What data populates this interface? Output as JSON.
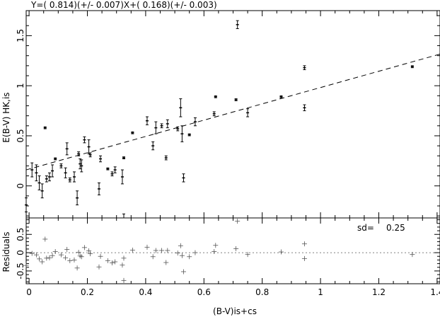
{
  "chart_data": {
    "type": "scatter",
    "title": "Y=( 0.814)(+/- 0.007)X+( 0.168)(+/- 0.003)",
    "xlabel": "(B-V)is+cs",
    "ylabel": "E(B-V) HK,is",
    "xlim": [
      -0.01,
      1.41
    ],
    "ylim": [
      -0.32,
      1.75
    ],
    "x_ticks": [
      "0",
      "0.2",
      "0.4",
      "0.6",
      "0.8",
      "1",
      "1.2",
      "1.4"
    ],
    "y_ticks": [
      "0",
      "0.5",
      "1",
      "1.5"
    ],
    "fit_line": {
      "slope": 0.814,
      "intercept": 0.168,
      "style": "dashed"
    },
    "points": [
      {
        "x": -0.01,
        "y": -0.19,
        "err": 0.07
      },
      {
        "x": 0.01,
        "y": 0.16,
        "err": 0.07
      },
      {
        "x": 0.025,
        "y": 0.13,
        "err": 0.08
      },
      {
        "x": 0.035,
        "y": 0.03,
        "err": 0.07
      },
      {
        "x": 0.045,
        "y": -0.05,
        "err": 0.07
      },
      {
        "x": 0.055,
        "y": 0.58,
        "err": 0.01
      },
      {
        "x": 0.06,
        "y": 0.07,
        "err": 0.03
      },
      {
        "x": 0.07,
        "y": 0.09,
        "err": 0.04
      },
      {
        "x": 0.08,
        "y": 0.15,
        "err": 0.06
      },
      {
        "x": 0.09,
        "y": 0.27,
        "err": 0.01
      },
      {
        "x": 0.11,
        "y": 0.2,
        "err": 0.02
      },
      {
        "x": 0.125,
        "y": 0.13,
        "err": 0.05
      },
      {
        "x": 0.13,
        "y": 0.37,
        "err": 0.06
      },
      {
        "x": 0.14,
        "y": 0.06,
        "err": 0.02
      },
      {
        "x": 0.155,
        "y": 0.09,
        "err": 0.05
      },
      {
        "x": 0.165,
        "y": -0.12,
        "err": 0.07
      },
      {
        "x": 0.17,
        "y": 0.32,
        "err": 0.02
      },
      {
        "x": 0.175,
        "y": 0.22,
        "err": 0.05
      },
      {
        "x": 0.18,
        "y": 0.2,
        "err": 0.06
      },
      {
        "x": 0.19,
        "y": 0.46,
        "err": 0.03
      },
      {
        "x": 0.205,
        "y": 0.39,
        "err": 0.07
      },
      {
        "x": 0.21,
        "y": 0.31,
        "err": 0.02
      },
      {
        "x": 0.24,
        "y": -0.03,
        "err": 0.06
      },
      {
        "x": 0.245,
        "y": 0.27,
        "err": 0.03
      },
      {
        "x": 0.27,
        "y": 0.17,
        "err": 0.01
      },
      {
        "x": 0.285,
        "y": 0.12,
        "err": 0.02
      },
      {
        "x": 0.295,
        "y": 0.16,
        "err": 0.03
      },
      {
        "x": 0.32,
        "y": 0.09,
        "err": 0.07
      },
      {
        "x": 0.325,
        "y": 0.28,
        "err": 0.01
      },
      {
        "x": 0.325,
        "y": -0.33,
        "err": 0.05
      },
      {
        "x": 0.355,
        "y": 0.53,
        "err": 0.01
      },
      {
        "x": 0.405,
        "y": 0.65,
        "err": 0.04
      },
      {
        "x": 0.425,
        "y": 0.4,
        "err": 0.04
      },
      {
        "x": 0.435,
        "y": 0.58,
        "err": 0.06
      },
      {
        "x": 0.455,
        "y": 0.6,
        "err": 0.02
      },
      {
        "x": 0.47,
        "y": 0.28,
        "err": 0.02
      },
      {
        "x": 0.475,
        "y": 0.62,
        "err": 0.04
      },
      {
        "x": 0.51,
        "y": 0.57,
        "err": 0.02
      },
      {
        "x": 0.52,
        "y": 0.78,
        "err": 0.09
      },
      {
        "x": 0.525,
        "y": 0.52,
        "err": 0.08
      },
      {
        "x": 0.53,
        "y": 0.08,
        "err": 0.04
      },
      {
        "x": 0.55,
        "y": 0.51,
        "err": 0.01
      },
      {
        "x": 0.57,
        "y": 0.64,
        "err": 0.04
      },
      {
        "x": 0.635,
        "y": 0.72,
        "err": 0.02
      },
      {
        "x": 0.64,
        "y": 0.89,
        "err": 0.01
      },
      {
        "x": 0.71,
        "y": 0.86,
        "err": 0.01
      },
      {
        "x": 0.715,
        "y": 1.61,
        "err": 0.04
      },
      {
        "x": 0.75,
        "y": 0.73,
        "err": 0.04
      },
      {
        "x": 0.865,
        "y": 0.89,
        "err": 0.01
      },
      {
        "x": 0.945,
        "y": 1.18,
        "err": 0.02
      },
      {
        "x": 0.945,
        "y": 0.78,
        "err": 0.03
      },
      {
        "x": 1.315,
        "y": 1.19,
        "err": 0.01
      }
    ],
    "residuals_panel": {
      "ylabel": "Residuals",
      "ylim": [
        -0.85,
        0.95
      ],
      "y_ticks": [
        "0.5",
        "0",
        "-0.5"
      ],
      "sd_label": "sd=",
      "sd_value": "0.25",
      "points": [
        {
          "x": -0.01,
          "y": -0.35
        },
        {
          "x": 0.01,
          "y": -0.02
        },
        {
          "x": 0.025,
          "y": -0.06
        },
        {
          "x": 0.035,
          "y": -0.17
        },
        {
          "x": 0.045,
          "y": -0.25
        },
        {
          "x": 0.055,
          "y": 0.37
        },
        {
          "x": 0.06,
          "y": -0.15
        },
        {
          "x": 0.07,
          "y": -0.14
        },
        {
          "x": 0.08,
          "y": -0.08
        },
        {
          "x": 0.09,
          "y": 0.03
        },
        {
          "x": 0.11,
          "y": -0.06
        },
        {
          "x": 0.125,
          "y": -0.14
        },
        {
          "x": 0.13,
          "y": 0.09
        },
        {
          "x": 0.14,
          "y": -0.22
        },
        {
          "x": 0.155,
          "y": -0.2
        },
        {
          "x": 0.165,
          "y": -0.42
        },
        {
          "x": 0.17,
          "y": 0.01
        },
        {
          "x": 0.175,
          "y": -0.09
        },
        {
          "x": 0.18,
          "y": -0.11
        },
        {
          "x": 0.19,
          "y": 0.14
        },
        {
          "x": 0.205,
          "y": 0.05
        },
        {
          "x": 0.21,
          "y": -0.03
        },
        {
          "x": 0.24,
          "y": -0.39
        },
        {
          "x": 0.245,
          "y": -0.1
        },
        {
          "x": 0.27,
          "y": -0.22
        },
        {
          "x": 0.285,
          "y": -0.28
        },
        {
          "x": 0.295,
          "y": -0.25
        },
        {
          "x": 0.32,
          "y": -0.34
        },
        {
          "x": 0.325,
          "y": -0.15
        },
        {
          "x": 0.325,
          "y": -0.76
        },
        {
          "x": 0.355,
          "y": 0.07
        },
        {
          "x": 0.405,
          "y": 0.15
        },
        {
          "x": 0.425,
          "y": -0.11
        },
        {
          "x": 0.435,
          "y": 0.06
        },
        {
          "x": 0.455,
          "y": 0.06
        },
        {
          "x": 0.47,
          "y": -0.27
        },
        {
          "x": 0.475,
          "y": 0.06
        },
        {
          "x": 0.51,
          "y": -0.01
        },
        {
          "x": 0.52,
          "y": 0.19
        },
        {
          "x": 0.525,
          "y": -0.08
        },
        {
          "x": 0.53,
          "y": -0.52
        },
        {
          "x": 0.55,
          "y": -0.11
        },
        {
          "x": 0.57,
          "y": 0.0
        },
        {
          "x": 0.635,
          "y": 0.03
        },
        {
          "x": 0.64,
          "y": 0.2
        },
        {
          "x": 0.71,
          "y": 0.11
        },
        {
          "x": 0.715,
          "y": 0.86
        },
        {
          "x": 0.75,
          "y": -0.05
        },
        {
          "x": 0.865,
          "y": 0.02
        },
        {
          "x": 0.945,
          "y": 0.24
        },
        {
          "x": 0.945,
          "y": -0.16
        },
        {
          "x": 1.315,
          "y": -0.05
        }
      ]
    }
  }
}
